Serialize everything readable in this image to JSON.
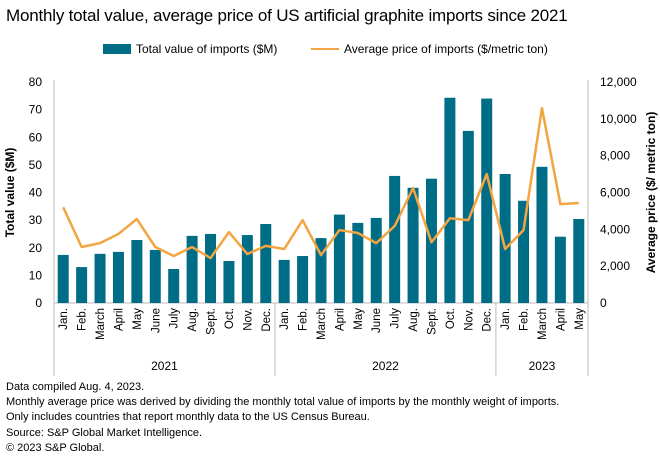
{
  "chart_data": {
    "type": "bar+line",
    "title": "Monthly total value, average price of US artificial graphite imports since 2021",
    "categories": [
      "Jan.",
      "Feb.",
      "March",
      "April",
      "May",
      "June",
      "July",
      "Aug.",
      "Sept.",
      "Oct.",
      "Nov.",
      "Dec.",
      "Jan.",
      "Feb.",
      "March",
      "April",
      "May",
      "June",
      "July",
      "Aug.",
      "Sept.",
      "Oct.",
      "Nov.",
      "Dec.",
      "Jan.",
      "Feb.",
      "March",
      "April",
      "May"
    ],
    "groups": [
      {
        "label": "2021",
        "count": 12
      },
      {
        "label": "2022",
        "count": 12
      },
      {
        "label": "2023",
        "count": 5
      }
    ],
    "series": [
      {
        "name": "Total value of imports ($M)",
        "type": "bar",
        "axis": "left",
        "color": "#006d87",
        "values": [
          17.4,
          13,
          17.8,
          18.5,
          22.8,
          19.2,
          12.3,
          24.3,
          25,
          15.2,
          24.6,
          28.6,
          15.6,
          17,
          23.5,
          32,
          29,
          30.8,
          46,
          41.7,
          45,
          74.3,
          62.3,
          74,
          46.7,
          37,
          49.3,
          24,
          30.4
        ]
      },
      {
        "name": "Average price of imports ($/metric ton)",
        "type": "line",
        "axis": "right",
        "color": "#f2a541",
        "values": [
          5200,
          3040,
          3250,
          3750,
          4560,
          3040,
          2550,
          3040,
          2440,
          3850,
          2660,
          3100,
          2930,
          4500,
          2600,
          3960,
          3800,
          3250,
          4180,
          6240,
          3300,
          4600,
          4500,
          7000,
          2930,
          3960,
          10580,
          5370,
          5430
        ]
      }
    ],
    "ylabel": "Total value ($M)",
    "ylim": [
      0,
      80
    ],
    "yticks": [
      "0",
      "10",
      "20",
      "30",
      "40",
      "50",
      "60",
      "70",
      "80"
    ],
    "y2label": "Average price ($/ metric ton)",
    "y2lim": [
      0,
      12000
    ],
    "y2ticks": [
      "0",
      "2,000",
      "4,000",
      "6,000",
      "8,000",
      "10,000",
      "12,000"
    ],
    "grid": false,
    "legend": "top"
  },
  "notes": [
    "Data compiled Aug. 4, 2023.",
    "Monthly average price was derived by dividing the monthly total value of imports by the monthly weight of imports.",
    "Only includes countries that report monthly data to the US Census Bureau.",
    "Source: S&P Global Market Intelligence.",
    "© 2023 S&P Global."
  ]
}
